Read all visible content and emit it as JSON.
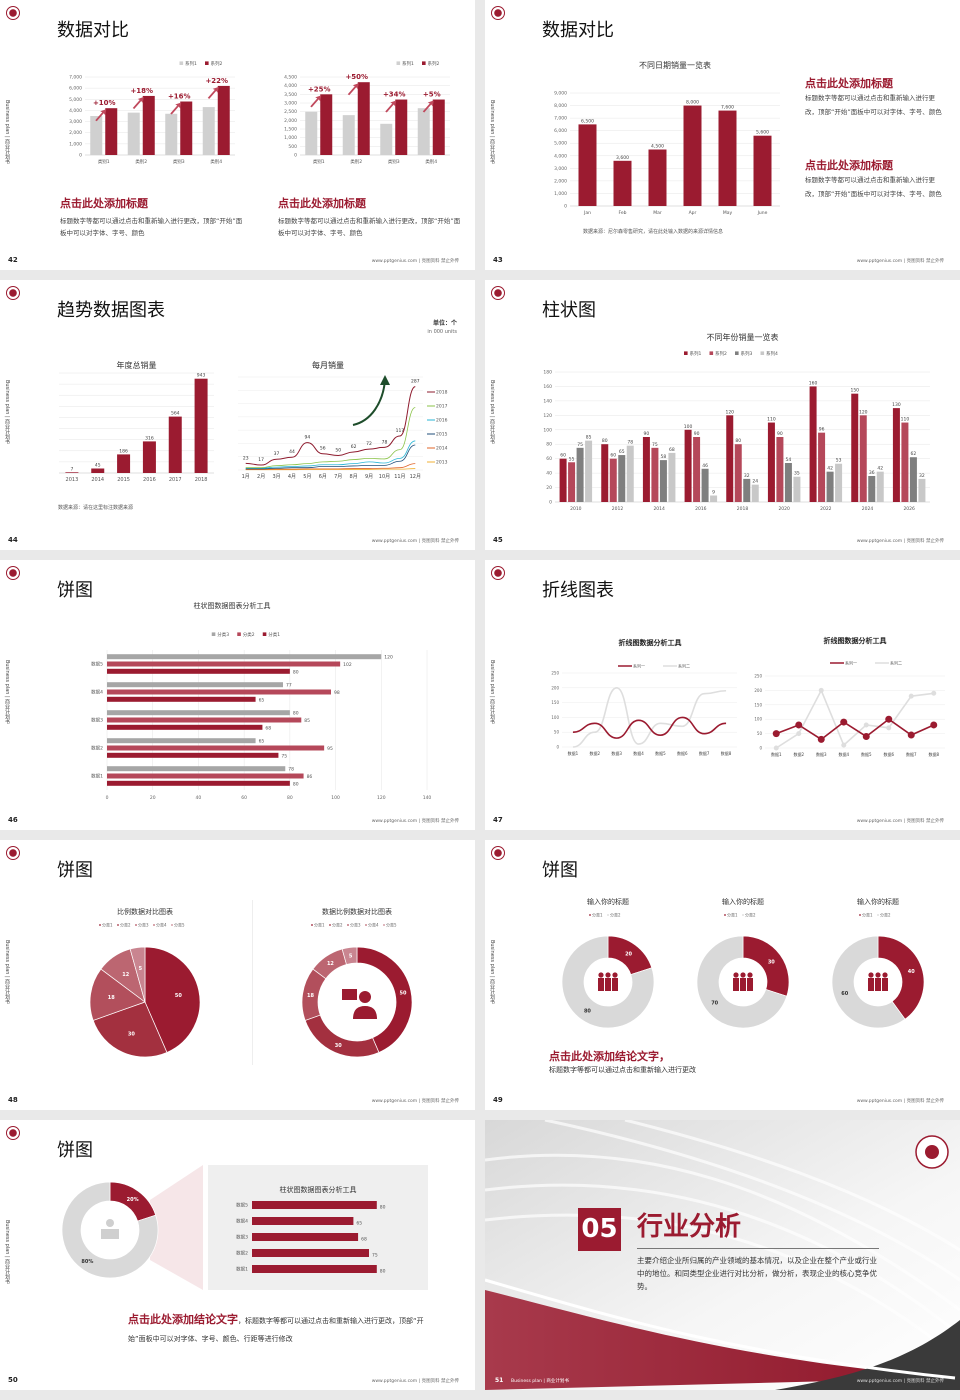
{
  "common": {
    "side_text": "Business plan | 商业计划书",
    "footer": "www.pptgenius.com | 亮图资料 禁止外传"
  },
  "colors": {
    "primary": "#9b1b30",
    "secondary": "#b5485a",
    "light": "#c77d88",
    "gray": "#d0d0d0",
    "dark_gray": "#7f7f7f"
  },
  "slides": [
    {
      "page": "42",
      "title": "数据对比",
      "blocks": [
        {
          "heading": "点击此处添加标题",
          "body": "标题数字等都可以通过点击和重新输入进行更改，顶部“开始”面板中可以对字体、字号、颜色"
        },
        {
          "heading": "点击此处添加标题",
          "body": "标题数字等都可以通过点击和重新输入进行更改，顶部“开始”面板中可以对字体、字号、颜色"
        }
      ]
    },
    {
      "page": "43",
      "title": "数据对比",
      "source": "数据来源：尼尔森零售研究，请在此处输入数据的来源详情信息",
      "blocks": [
        {
          "heading": "点击此处添加标题",
          "body": "标题数字等都可以通过点击和重新输入进行更改，顶部“开始”面板中可以对字体、字号、颜色"
        },
        {
          "heading": "点击此处添加标题",
          "body": "标题数字等都可以通过点击和重新输入进行更改，顶部“开始”面板中可以对字体、字号、颜色"
        }
      ]
    },
    {
      "page": "44",
      "title": "趋势数据图表",
      "unit": "单位：个",
      "unit_en": "in 000 units",
      "source": "数据来源：请在这里标注数据来源"
    },
    {
      "page": "45",
      "title": "柱状图"
    },
    {
      "page": "46",
      "title": "饼图"
    },
    {
      "page": "47",
      "title": "折线图表"
    },
    {
      "page": "48",
      "title": "饼图"
    },
    {
      "page": "49",
      "title": "饼图",
      "conclusion_heading": "点击此处添加结论文字，",
      "conclusion_body": "标题数字等都可以通过点击和重新输入进行更改"
    },
    {
      "page": "50",
      "title": "饼图",
      "conclusion_heading": "点击此处添加结论文字",
      "conclusion_body": "，标题数字等都可以通过点击和重新输入进行更改，顶部“开始”面板中可以对字体、字号、颜色、行距等进行修改"
    },
    {
      "page": "51",
      "side_footer": "Business plan | 商业计划书",
      "number": "05",
      "title": "行业分析",
      "body": "主要介绍企业所归属的产业领域的基本情况，以及企业在整个产业或行业中的地位。和同类型企业进行对比分析，做分析，表现企业的核心竞争优势。"
    }
  ],
  "chart_data": [
    {
      "id": "s42a",
      "type": "bar",
      "categories": [
        "类别1",
        "类别2",
        "类别3",
        "类别4"
      ],
      "series": [
        {
          "name": "系列1",
          "values": [
            3500,
            3800,
            3700,
            4300
          ]
        },
        {
          "name": "系列2",
          "values": [
            4200,
            5300,
            4800,
            6200
          ]
        }
      ],
      "annotations": [
        "+10%",
        "+18%",
        "+16%",
        "+22%"
      ],
      "ylim": [
        0,
        7000
      ],
      "ystep": 1000,
      "grid": true,
      "legend": "top-right"
    },
    {
      "id": "s42b",
      "type": "bar",
      "categories": [
        "类别1",
        "类别2",
        "类别3",
        "类别4"
      ],
      "series": [
        {
          "name": "系列1",
          "values": [
            2500,
            2300,
            1800,
            2700
          ]
        },
        {
          "name": "系列2",
          "values": [
            3500,
            4200,
            3200,
            3200
          ]
        }
      ],
      "annotations": [
        "+25%",
        "+50%",
        "+34%",
        "+5%"
      ],
      "ylim": [
        0,
        4500
      ],
      "ystep": 500,
      "grid": true,
      "legend": "top-right"
    },
    {
      "id": "s43",
      "type": "bar",
      "title": "不同日期销量一览表",
      "categories": [
        "Jan",
        "Feb",
        "Mar",
        "Apr",
        "May",
        "June"
      ],
      "values": [
        6500,
        3600,
        4500,
        8000,
        7600,
        5600
      ],
      "ylim": [
        0,
        9000
      ],
      "ystep": 1000,
      "grid": true
    },
    {
      "id": "s44a",
      "type": "bar",
      "title": "年度总销量",
      "categories": [
        "2013",
        "2014",
        "2015",
        "2016",
        "2017",
        "2018"
      ],
      "values": [
        7,
        45,
        186,
        316,
        564,
        943
      ],
      "ylim": [
        0,
        1000
      ],
      "grid": true
    },
    {
      "id": "s44b",
      "type": "line",
      "title": "每月销量",
      "categories": [
        "1月",
        "2月",
        "3月",
        "4月",
        "5月",
        "6月",
        "7月",
        "8月",
        "9月",
        "10月",
        "11月",
        "12月"
      ],
      "series": [
        {
          "name": "2018",
          "values": [
            23,
            17,
            37,
            44,
            94,
            56,
            50,
            62,
            72,
            78,
            117,
            287
          ],
          "labeled": true
        },
        {
          "name": "2017",
          "values": [
            8,
            8,
            15,
            18,
            22,
            28,
            30,
            36,
            40,
            38,
            70,
            215
          ]
        },
        {
          "name": "2016",
          "values": [
            6,
            6,
            10,
            12,
            14,
            18,
            18,
            22,
            28,
            24,
            40,
            100
          ]
        },
        {
          "name": "2015",
          "values": [
            4,
            4,
            6,
            8,
            8,
            12,
            12,
            14,
            16,
            16,
            30,
            86
          ]
        },
        {
          "name": "2014",
          "values": [
            2,
            2,
            3,
            3,
            4,
            4,
            4,
            5,
            5,
            6,
            8,
            22
          ]
        },
        {
          "name": "2013",
          "values": [
            1,
            1,
            1,
            1,
            2,
            2,
            2,
            2,
            2,
            3,
            3,
            5
          ]
        }
      ],
      "ylim": [
        0,
        320
      ],
      "grid": true,
      "legend": "right"
    },
    {
      "id": "s45",
      "type": "bar",
      "title": "不同年份销量一览表",
      "categories": [
        "2010",
        "2012",
        "2014",
        "2016",
        "2018",
        "2020",
        "2022",
        "2024",
        "2026"
      ],
      "series": [
        {
          "name": "系列1",
          "values": [
            60,
            80,
            90,
            100,
            120,
            110,
            160,
            150,
            130
          ]
        },
        {
          "name": "系列2",
          "values": [
            55,
            60,
            75,
            90,
            80,
            90,
            96,
            120,
            110
          ]
        },
        {
          "name": "系列3",
          "values": [
            75,
            65,
            58,
            46,
            32,
            54,
            42,
            36,
            62
          ]
        },
        {
          "name": "系列4",
          "values": [
            85,
            78,
            68,
            9,
            24,
            35,
            53,
            42,
            32
          ]
        }
      ],
      "ylim": [
        0,
        180
      ],
      "ystep": 20,
      "grid": true,
      "legend": "top"
    },
    {
      "id": "s46",
      "type": "bar",
      "orientation": "horizontal",
      "title": "柱状图数据图表分析工具",
      "categories": [
        "数据5",
        "数据4",
        "数据3",
        "数据2",
        "数据1"
      ],
      "series": [
        {
          "name": "分类3",
          "values": [
            120,
            77,
            80,
            65,
            78
          ]
        },
        {
          "name": "分类2",
          "values": [
            102,
            98,
            85,
            95,
            86
          ]
        },
        {
          "name": "分类1",
          "values": [
            80,
            65,
            68,
            75,
            80
          ]
        }
      ],
      "xlim": [
        0,
        140
      ],
      "xstep": 20,
      "grid": true,
      "legend": "top"
    },
    {
      "id": "s47a",
      "type": "line",
      "title": "折线图数据分析工具",
      "categories": [
        "数据1",
        "数据2",
        "数据3",
        "数据4",
        "数据5",
        "数据6",
        "数据7",
        "数据8"
      ],
      "series": [
        {
          "name": "系列一",
          "values": [
            50,
            80,
            30,
            90,
            40,
            100,
            45,
            80
          ]
        },
        {
          "name": "系列二",
          "values": [
            0,
            50,
            200,
            10,
            80,
            70,
            180,
            190
          ]
        }
      ],
      "ylim": [
        0,
        250
      ],
      "ystep": 50,
      "smooth": true,
      "legend": "top"
    },
    {
      "id": "s47b",
      "type": "line",
      "title": "折线图数据分析工具",
      "categories": [
        "数据1",
        "数据2",
        "数据3",
        "数据4",
        "数据5",
        "数据6",
        "数据7",
        "数据8"
      ],
      "series": [
        {
          "name": "系列一",
          "values": [
            50,
            80,
            30,
            90,
            40,
            100,
            45,
            80
          ]
        },
        {
          "name": "系列二",
          "values": [
            0,
            50,
            200,
            10,
            80,
            70,
            180,
            190
          ]
        }
      ],
      "ylim": [
        0,
        250
      ],
      "ystep": 50,
      "markers": true,
      "legend": "top"
    },
    {
      "id": "s48a",
      "type": "pie",
      "title": "比例数据对比图表",
      "labels": [
        "分类1",
        "分类2",
        "分类3",
        "分类4",
        "分类5"
      ],
      "values": [
        50,
        30,
        18,
        12,
        5
      ],
      "legend": "top"
    },
    {
      "id": "s48b",
      "type": "pie",
      "donut": true,
      "title": "数据比例数据对比图表",
      "labels": [
        "分类1",
        "分类2",
        "分类3",
        "分类4",
        "分类5"
      ],
      "values": [
        50,
        30,
        18,
        12,
        5
      ],
      "legend": "top"
    },
    {
      "id": "s49a",
      "type": "pie",
      "donut": true,
      "title": "输入你的标题",
      "labels": [
        "分类1",
        "分类2"
      ],
      "values": [
        20,
        80
      ],
      "legend": "top"
    },
    {
      "id": "s49b",
      "type": "pie",
      "donut": true,
      "title": "输入你的标题",
      "labels": [
        "分类1",
        "分类2"
      ],
      "values": [
        30,
        70
      ],
      "legend": "top"
    },
    {
      "id": "s49c",
      "type": "pie",
      "donut": true,
      "title": "输入你的标题",
      "labels": [
        "分类1",
        "分类2"
      ],
      "values": [
        40,
        60
      ],
      "legend": "top"
    },
    {
      "id": "s50a",
      "type": "pie",
      "donut": true,
      "values": [
        20,
        80
      ],
      "value_labels": [
        "20%",
        "80%"
      ]
    },
    {
      "id": "s50b",
      "type": "bar",
      "orientation": "horizontal",
      "title": "柱状图数据图表分析工具",
      "categories": [
        "数据5",
        "数据4",
        "数据3",
        "数据2",
        "数据1"
      ],
      "values": [
        80,
        65,
        68,
        75,
        80
      ],
      "xlim": [
        0,
        100
      ]
    }
  ]
}
